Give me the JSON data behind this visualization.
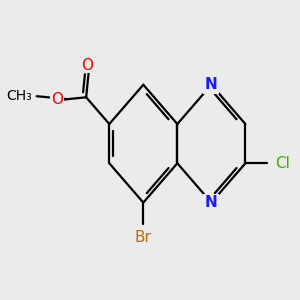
{
  "background_color": "#ebebeb",
  "bond_color": "#000000",
  "atom_colors": {
    "N": "#1a1aff",
    "O": "#ff0000",
    "Br": "#b87000",
    "Cl": "#3cb000",
    "C": "#000000"
  },
  "font_size_atoms": 11,
  "line_width": 1.6,
  "figsize": [
    3.0,
    3.0
  ],
  "dpi": 100
}
